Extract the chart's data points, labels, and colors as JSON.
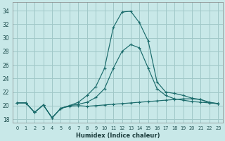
{
  "xlabel": "Humidex (Indice chaleur)",
  "bg_color": "#c8e8e8",
  "grid_color": "#a0c8c8",
  "line_color": "#1a6b6b",
  "x_ticks": [
    0,
    1,
    2,
    3,
    4,
    5,
    6,
    7,
    8,
    9,
    10,
    11,
    12,
    13,
    14,
    15,
    16,
    17,
    18,
    19,
    20,
    21,
    22,
    23
  ],
  "y_ticks": [
    18,
    20,
    22,
    24,
    26,
    28,
    30,
    32,
    34
  ],
  "xlim": [
    -0.5,
    23.5
  ],
  "ylim": [
    17.5,
    35.2
  ],
  "series1_y": [
    20.4,
    20.4,
    19.0,
    20.1,
    18.2,
    19.6,
    19.9,
    20.0,
    19.9,
    20.0,
    20.1,
    20.2,
    20.3,
    20.4,
    20.5,
    20.6,
    20.7,
    20.8,
    20.9,
    21.0,
    21.0,
    20.9,
    20.5,
    20.3
  ],
  "series2_y": [
    20.4,
    20.4,
    19.0,
    20.1,
    18.2,
    19.6,
    20.0,
    20.2,
    20.5,
    21.2,
    22.5,
    25.5,
    28.0,
    29.0,
    28.5,
    25.5,
    22.5,
    21.5,
    21.0,
    20.8,
    20.6,
    20.5,
    20.4,
    20.3
  ],
  "series3_y": [
    20.4,
    20.4,
    19.0,
    20.1,
    18.2,
    19.6,
    20.0,
    20.5,
    21.5,
    22.8,
    25.5,
    31.5,
    33.8,
    33.9,
    32.2,
    29.5,
    23.5,
    22.0,
    21.8,
    21.5,
    21.1,
    20.9,
    20.4,
    20.3
  ]
}
